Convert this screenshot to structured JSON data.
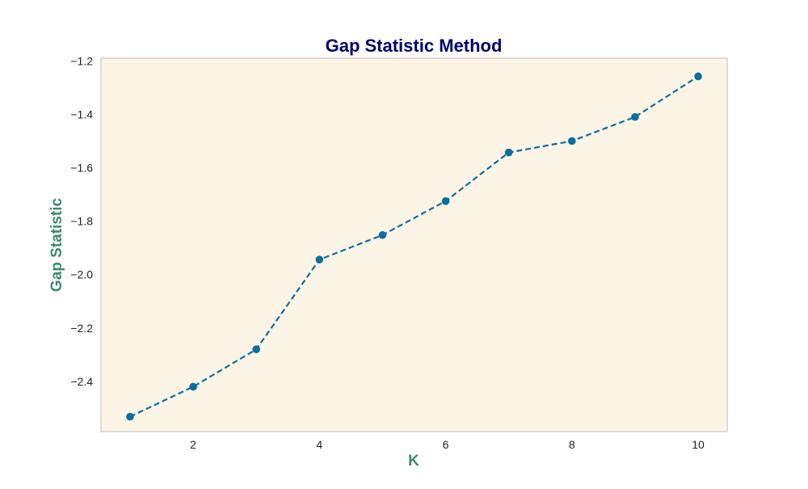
{
  "chart_data": {
    "type": "line",
    "title": "Gap Statistic Method",
    "xlabel": "K",
    "ylabel": "Gap Statistic",
    "x": [
      1,
      2,
      3,
      4,
      5,
      6,
      7,
      8,
      9,
      10
    ],
    "series": [
      {
        "values": [
          -2.532,
          -2.42,
          -2.28,
          -1.944,
          -1.852,
          -1.725,
          -1.543,
          -1.5,
          -1.41,
          -1.258
        ]
      }
    ],
    "xlim": [
      0.54,
      10.46
    ],
    "ylim": [
      -2.588,
      -1.19
    ],
    "xticks": [
      2,
      4,
      6,
      8,
      10
    ],
    "xtick_labels": [
      "2",
      "4",
      "6",
      "8",
      "10"
    ],
    "yticks": [
      -2.4,
      -2.2,
      -2.0,
      -1.8,
      -1.6,
      -1.4,
      -1.2
    ],
    "ytick_labels": [
      "−2.4",
      "−2.2",
      "−2.0",
      "−1.8",
      "−1.6",
      "−1.4",
      "−1.2"
    ],
    "grid": false,
    "line_style": "dashed",
    "marker": "circle",
    "colors": {
      "line": "#0a6ea0",
      "plot_background": "#fcf5e5",
      "plot_border": "#d2d2d2",
      "title": "#00006e",
      "axis_label": "#3d8a6e"
    }
  }
}
